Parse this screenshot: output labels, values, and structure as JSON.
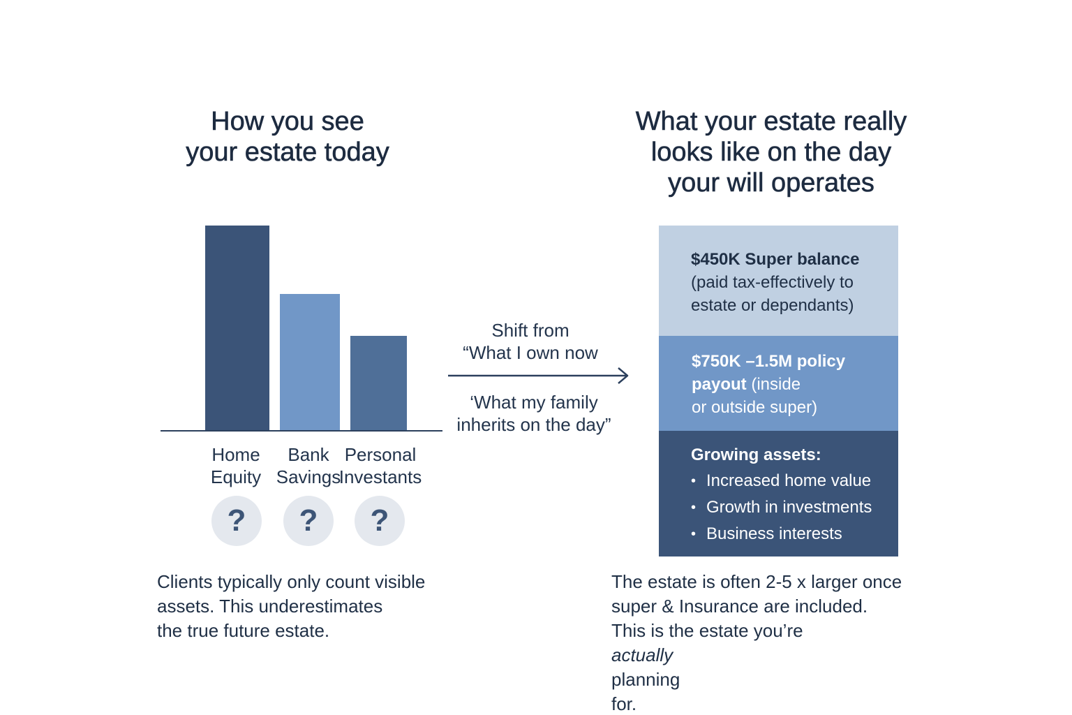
{
  "left": {
    "heading": [
      "How you see",
      "your estate today"
    ],
    "bars": [
      {
        "label": [
          "Home",
          "Equity"
        ],
        "value": 1.0,
        "color": "#3b5478"
      },
      {
        "label": [
          "Bank",
          "Savings"
        ],
        "value": 0.665,
        "color": "#7197c7"
      },
      {
        "label": [
          "Personal",
          "Investants"
        ],
        "value": 0.46,
        "color": "#4f6f98"
      }
    ],
    "question_marks": [
      "?",
      "?",
      "?"
    ],
    "caption": [
      "Clients typically only count visible",
      "assets. This underestimates",
      "the true future estate."
    ]
  },
  "middle": {
    "shift_top": [
      "Shift from",
      "“What I own now"
    ],
    "shift_bottom": [
      "‘What my family",
      "inherits on the day”"
    ]
  },
  "right": {
    "heading": [
      "What your estate really",
      "looks like on the day",
      "your will operates"
    ],
    "block_super": {
      "title": "$450K Super balance",
      "lines": [
        "(paid tax-effectively to",
        "estate or dependants)"
      ],
      "color": "#c0d0e2"
    },
    "block_policy": {
      "title": "$750K –1.5M policy",
      "title2_bold": "payout",
      "title2_rest": " (inside",
      "line3": "or outside super)",
      "color": "#7197c7"
    },
    "block_growing": {
      "title": "Growing assets:",
      "bullets": [
        "Increased home value",
        "Growth in investments",
        "Business interests"
      ],
      "color": "#3b5478"
    },
    "caption_lines": [
      "The estate is often 2-5 x larger once",
      "super & Insurance are included."
    ],
    "caption_line3_pre": "This is the estate you’re ",
    "caption_line3_em": "actually",
    "caption_line3_post": " planning",
    "caption_line4": "for."
  }
}
